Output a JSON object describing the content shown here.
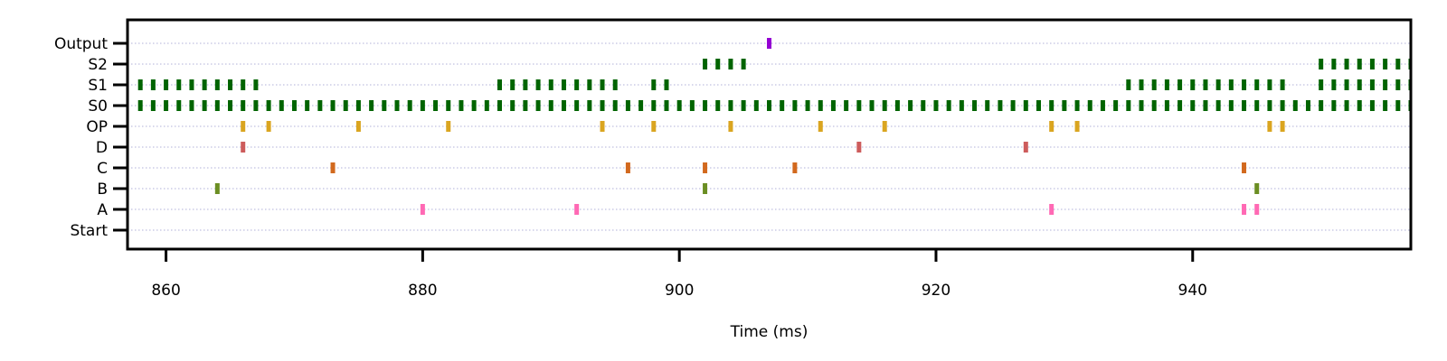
{
  "chart_data": {
    "type": "raster",
    "title": "",
    "xlabel": "Time (ms)",
    "ylabel": "",
    "xlim": [
      857,
      957
    ],
    "xticks": [
      860,
      880,
      900,
      920,
      940
    ],
    "grid": "horizontal-dotted",
    "legend": "none",
    "rows": [
      {
        "label": "Start",
        "color": "#000000",
        "spikes": []
      },
      {
        "label": "A",
        "color": "#ff69b4",
        "spikes": [
          880,
          892,
          929,
          944,
          945
        ]
      },
      {
        "label": "B",
        "color": "#6b8e23",
        "spikes": [
          864,
          902,
          945
        ]
      },
      {
        "label": "C",
        "color": "#d2691e",
        "spikes": [
          873,
          896,
          902,
          909,
          944
        ]
      },
      {
        "label": "D",
        "color": "#cd5c5c",
        "spikes": [
          866,
          914,
          927
        ]
      },
      {
        "label": "OP",
        "color": "#daa520",
        "spikes": [
          866,
          868,
          875,
          882,
          894,
          898,
          904,
          911,
          916,
          929,
          931,
          946,
          947
        ]
      },
      {
        "label": "S0",
        "color": "#006400",
        "spikes": [
          858,
          859,
          860,
          861,
          862,
          863,
          864,
          865,
          866,
          867,
          868,
          869,
          870,
          871,
          872,
          873,
          874,
          875,
          876,
          877,
          878,
          879,
          880,
          881,
          882,
          883,
          884,
          885,
          886,
          887,
          888,
          889,
          890,
          891,
          892,
          893,
          894,
          895,
          896,
          897,
          898,
          899,
          900,
          901,
          902,
          903,
          904,
          905,
          906,
          907,
          908,
          909,
          910,
          911,
          912,
          913,
          914,
          915,
          916,
          917,
          918,
          919,
          920,
          921,
          922,
          923,
          924,
          925,
          926,
          927,
          928,
          929,
          930,
          931,
          932,
          933,
          934,
          935,
          936,
          937,
          938,
          939,
          940,
          941,
          942,
          943,
          944,
          945,
          946,
          947,
          948,
          949,
          950,
          951,
          952,
          953,
          954,
          955,
          956,
          957
        ]
      },
      {
        "label": "S1",
        "color": "#006400",
        "spikes": [
          858,
          859,
          860,
          861,
          862,
          863,
          864,
          865,
          866,
          867,
          886,
          887,
          888,
          889,
          890,
          891,
          892,
          893,
          894,
          895,
          898,
          899,
          935,
          936,
          937,
          938,
          939,
          940,
          941,
          942,
          943,
          944,
          945,
          946,
          947,
          950,
          951,
          952,
          953,
          954,
          955,
          956,
          957
        ]
      },
      {
        "label": "S2",
        "color": "#006400",
        "spikes": [
          902,
          903,
          904,
          905,
          950,
          951,
          952,
          953,
          954,
          955,
          956,
          957
        ]
      },
      {
        "label": "Output",
        "color": "#9400d3",
        "spikes": [
          907
        ]
      }
    ]
  }
}
